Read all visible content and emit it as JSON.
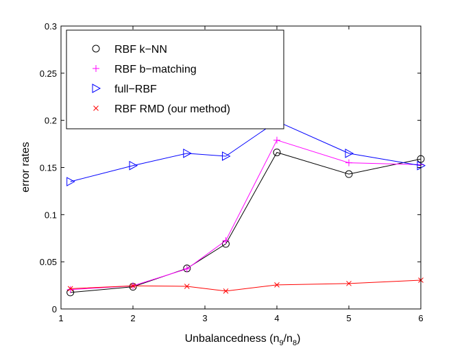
{
  "chart_data": {
    "type": "line",
    "xlabel": "Unbalancedness (n",
    "xlabel_sub1": "9",
    "xlabel_mid": "/n",
    "xlabel_sub2": "8",
    "xlabel_end": ")",
    "ylabel": "error rates",
    "xlim": [
      1,
      6
    ],
    "ylim": [
      0,
      0.3
    ],
    "xticks": [
      1,
      2,
      3,
      4,
      5,
      6
    ],
    "xtick_labels": [
      "1",
      "2",
      "3",
      "4",
      "5",
      "6"
    ],
    "yticks": [
      0,
      0.05,
      0.1,
      0.15,
      0.2,
      0.25,
      0.3
    ],
    "ytick_labels": [
      "0",
      "0.05",
      "0.1",
      "0.15",
      "0.2",
      "0.25",
      "0.3"
    ],
    "grid": false,
    "legend_position": "top-left",
    "x": [
      1.13,
      2.0,
      2.75,
      3.29,
      4.0,
      5.0,
      6.0
    ],
    "series": [
      {
        "name": "RBF k−NN",
        "marker": "circle",
        "color": "#000000",
        "values": [
          0.0175,
          0.0235,
          0.043,
          0.069,
          0.166,
          0.143,
          0.159
        ]
      },
      {
        "name": "RBF b−matching",
        "marker": "plus",
        "color": "#ff00ff",
        "values": [
          0.0205,
          0.0245,
          0.0425,
          0.0725,
          0.179,
          0.155,
          0.153
        ]
      },
      {
        "name": "full−RBF",
        "marker": "triangle-right",
        "color": "#0000ff",
        "values": [
          0.135,
          0.152,
          0.165,
          0.162,
          0.199,
          0.165,
          0.152
        ]
      },
      {
        "name": "RBF RMD (our method)",
        "marker": "x",
        "color": "#ff0000",
        "values": [
          0.0215,
          0.0245,
          0.024,
          0.019,
          0.0255,
          0.027,
          0.0305
        ]
      }
    ]
  }
}
